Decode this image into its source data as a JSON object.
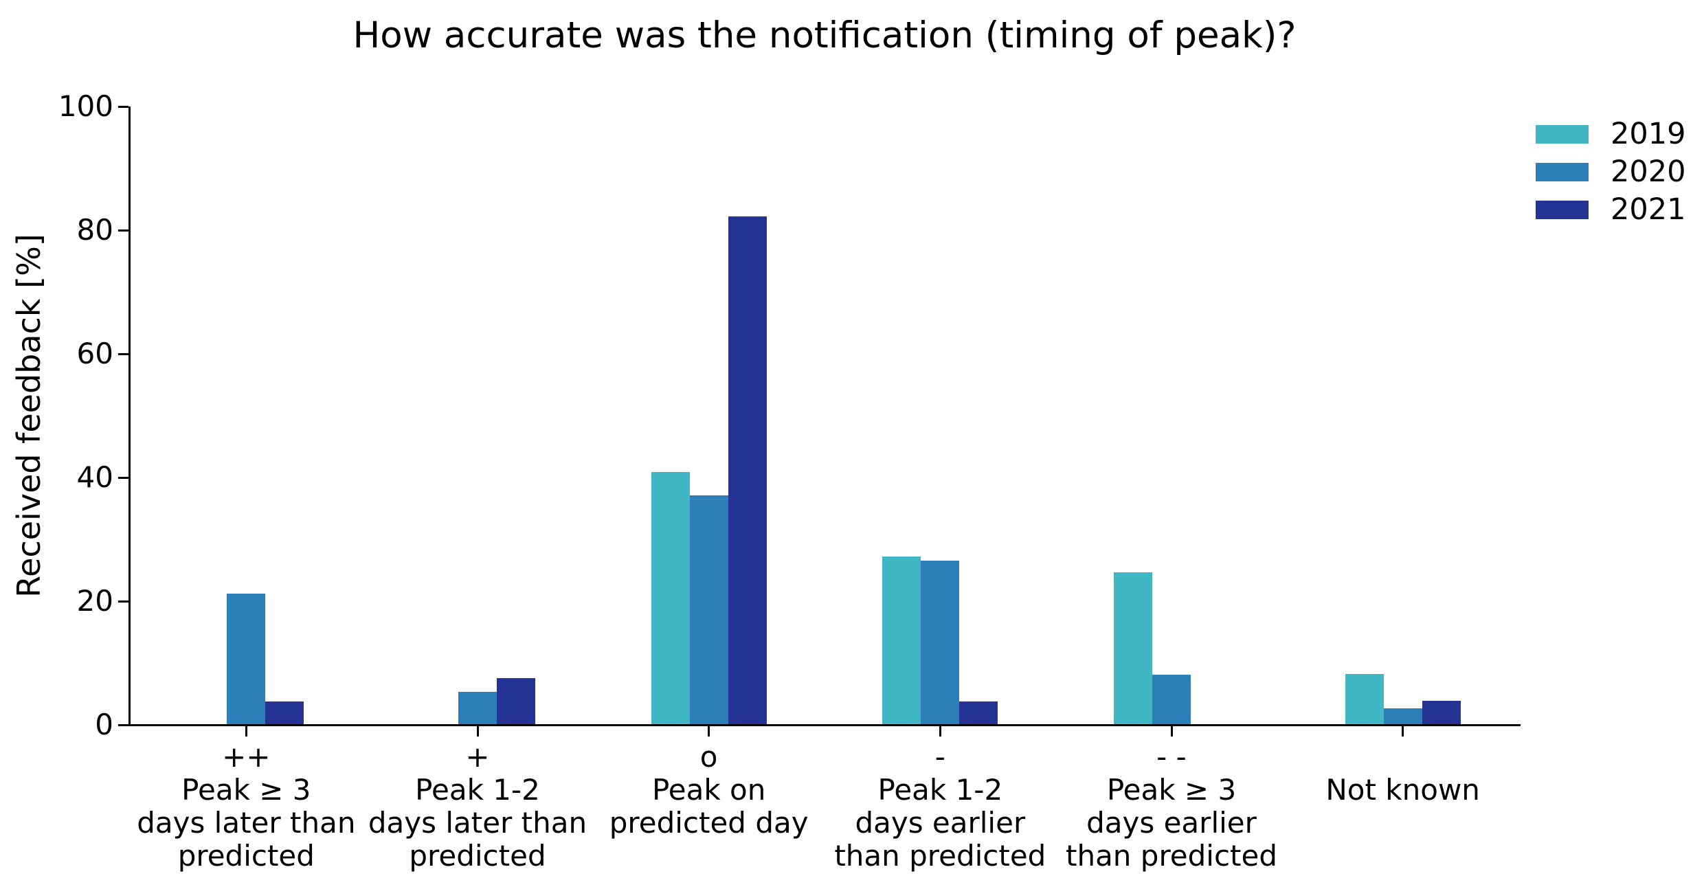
{
  "chart_data": {
    "type": "bar",
    "title": "How accurate was the notification (timing of peak)?",
    "xlabel": "",
    "ylabel": "Received feedback [%]",
    "ylim": [
      0,
      100
    ],
    "yticks": [
      0,
      20,
      40,
      60,
      80,
      100
    ],
    "grid": false,
    "legend_position": "upper right",
    "categories": [
      {
        "symbol": "++",
        "lines": [
          "Peak ≥ 3",
          "days later than",
          "predicted"
        ]
      },
      {
        "symbol": "+",
        "lines": [
          "Peak 1-2",
          "days later than",
          "predicted"
        ]
      },
      {
        "symbol": "o",
        "lines": [
          "Peak on",
          "predicted day"
        ]
      },
      {
        "symbol": "-",
        "lines": [
          "Peak 1-2",
          "days earlier",
          "than predicted"
        ]
      },
      {
        "symbol": "- -",
        "lines": [
          "Peak ≥ 3",
          "days earlier",
          "than predicted"
        ]
      },
      {
        "symbol": "",
        "lines": [
          "Not known"
        ]
      }
    ],
    "series": [
      {
        "name": "2019",
        "color": "#41b6c4",
        "values": [
          0,
          0,
          40.8,
          27.1,
          24.5,
          8.1
        ]
      },
      {
        "name": "2020",
        "color": "#2c7fb8",
        "values": [
          21.1,
          5.2,
          37.0,
          26.4,
          8.0,
          2.6
        ]
      },
      {
        "name": "2021",
        "color": "#253494",
        "values": [
          3.7,
          7.4,
          82.1,
          3.7,
          0,
          3.8
        ]
      }
    ]
  }
}
